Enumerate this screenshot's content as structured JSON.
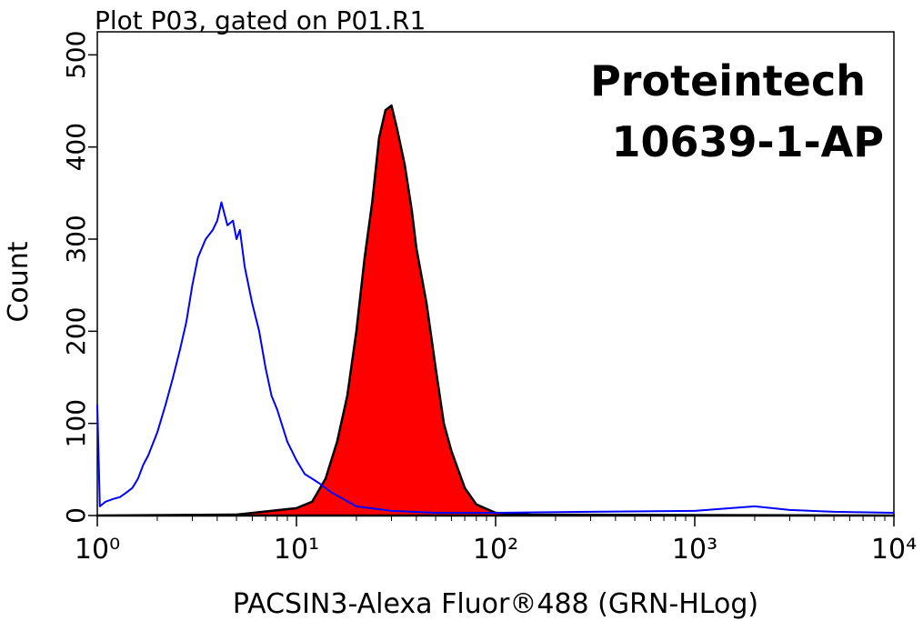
{
  "chart_data": {
    "type": "histogram",
    "title": "Plot P03, gated on P01.R1",
    "annotations": [
      "Proteintech",
      "10639-1-AP"
    ],
    "xlabel": "PACSIN3-Alexa Fluor®488 (GRN-HLog)",
    "ylabel": "Count",
    "xscale": "log",
    "xlim": [
      1,
      10000
    ],
    "ylim": [
      0,
      525
    ],
    "xticks": [
      {
        "value": 1,
        "label": "10⁰"
      },
      {
        "value": 10,
        "label": "10¹"
      },
      {
        "value": 100,
        "label": "10²"
      },
      {
        "value": 1000,
        "label": "10³"
      },
      {
        "value": 10000,
        "label": "10⁴"
      }
    ],
    "xminorticks": [
      2,
      3,
      4,
      5,
      6,
      7,
      8,
      9,
      20,
      30,
      40,
      50,
      60,
      70,
      80,
      90,
      200,
      300,
      400,
      500,
      600,
      700,
      800,
      900,
      2000,
      3000,
      4000,
      5000,
      6000,
      7000,
      8000,
      9000
    ],
    "yticks": [
      0,
      100,
      200,
      300,
      400,
      500
    ],
    "series": [
      {
        "color": "#ff0000",
        "outline": "#000000",
        "fill": true,
        "x": [
          1,
          5,
          10,
          12,
          14,
          16,
          18,
          20,
          22,
          24,
          26,
          28,
          30,
          32,
          35,
          38,
          40,
          45,
          50,
          55,
          60,
          70,
          80,
          100,
          150,
          10000
        ],
        "values": [
          0,
          1,
          8,
          15,
          40,
          80,
          130,
          200,
          280,
          340,
          410,
          440,
          445,
          420,
          380,
          330,
          290,
          230,
          160,
          100,
          70,
          30,
          12,
          3,
          1,
          0
        ]
      },
      {
        "color": "#0000ff",
        "fill": false,
        "x": [
          1,
          1.03,
          1.1,
          1.2,
          1.3,
          1.4,
          1.5,
          1.6,
          1.7,
          1.8,
          2,
          2.2,
          2.4,
          2.6,
          2.8,
          3,
          3.2,
          3.5,
          3.8,
          4,
          4.2,
          4.5,
          4.8,
          5,
          5.2,
          5.5,
          6,
          6.5,
          7,
          7.5,
          8,
          9,
          10,
          11,
          12,
          13,
          15,
          20,
          30,
          50,
          100,
          300,
          1000,
          2000,
          3000,
          5000,
          10000
        ],
        "values": [
          120,
          10,
          15,
          18,
          20,
          25,
          30,
          40,
          55,
          65,
          90,
          120,
          150,
          180,
          210,
          250,
          280,
          300,
          310,
          320,
          340,
          315,
          320,
          300,
          310,
          270,
          230,
          200,
          160,
          130,
          115,
          80,
          60,
          45,
          40,
          35,
          25,
          10,
          5,
          3,
          3,
          4,
          5,
          10,
          6,
          4,
          3
        ]
      }
    ]
  }
}
